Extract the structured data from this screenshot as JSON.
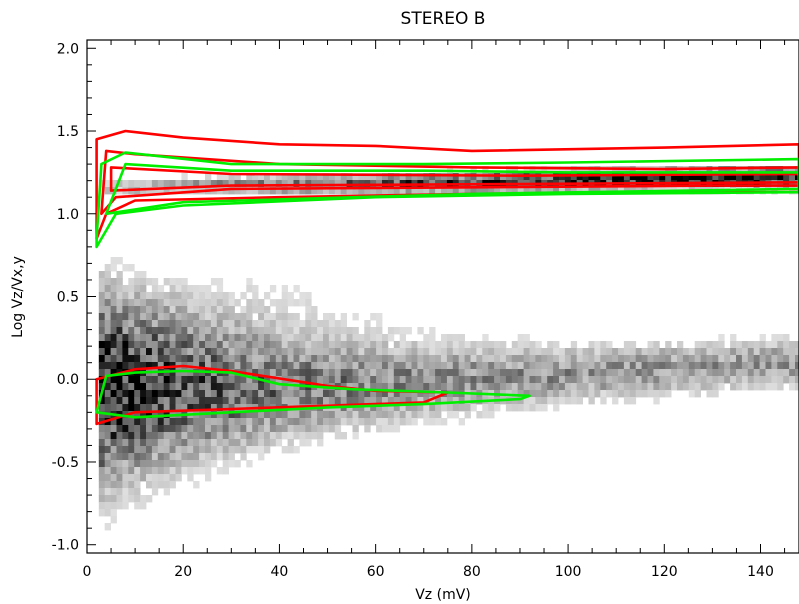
{
  "chart_data": {
    "type": "heatmap",
    "title": "STEREO B",
    "xlabel": "Vz (mV)",
    "ylabel": "Log Vz/Vx,y",
    "xlim": [
      0,
      148
    ],
    "ylim": [
      -1.05,
      2.05
    ],
    "x_ticks": [
      0,
      20,
      40,
      60,
      80,
      100,
      120,
      140
    ],
    "x_tick_labels": [
      "0",
      "20",
      "40",
      "60",
      "80",
      "100",
      "120",
      "140"
    ],
    "y_ticks": [
      -1.0,
      -0.5,
      0.0,
      0.5,
      1.0,
      1.5,
      2.0
    ],
    "y_tick_labels": [
      "-1.0",
      "-0.5",
      "0.0",
      "0.5",
      "1.0",
      "1.5",
      "2.0"
    ],
    "grid": false,
    "legend": "none",
    "colors": {
      "density": "grayscale",
      "contour_red": "#ff0000",
      "contour_green": "#00ee00"
    },
    "density_branches": [
      {
        "name": "upper band",
        "x_range": [
          2,
          148
        ],
        "y_center": [
          1.15,
          1.2
        ],
        "y_spread": 0.05,
        "peak_density": 0.75
      },
      {
        "name": "lower band",
        "x_range": [
          2,
          148
        ],
        "y_center": [
          -0.12,
          0.1
        ],
        "y_spread": 0.25,
        "peak_density": 0.9
      }
    ],
    "contours": [
      {
        "color": "red",
        "level": 1,
        "points": [
          [
            2,
            1.05
          ],
          [
            2,
            0.85
          ],
          [
            4,
            1.0
          ],
          [
            10,
            1.08
          ],
          [
            40,
            1.1
          ],
          [
            80,
            1.12
          ],
          [
            120,
            1.13
          ],
          [
            148,
            1.13
          ],
          [
            148,
            1.42
          ],
          [
            120,
            1.4
          ],
          [
            80,
            1.38
          ],
          [
            60,
            1.41
          ],
          [
            40,
            1.42
          ],
          [
            20,
            1.46
          ],
          [
            8,
            1.5
          ],
          [
            2,
            1.45
          ]
        ]
      },
      {
        "color": "red",
        "level": 2,
        "points": [
          [
            3,
            1.0
          ],
          [
            6,
            1.1
          ],
          [
            30,
            1.15
          ],
          [
            80,
            1.16
          ],
          [
            130,
            1.17
          ],
          [
            148,
            1.17
          ],
          [
            148,
            1.28
          ],
          [
            120,
            1.27
          ],
          [
            80,
            1.28
          ],
          [
            40,
            1.3
          ],
          [
            10,
            1.36
          ],
          [
            4,
            1.38
          ]
        ]
      },
      {
        "color": "red",
        "level": 3,
        "points": [
          [
            5,
            1.14
          ],
          [
            30,
            1.17
          ],
          [
            90,
            1.18
          ],
          [
            148,
            1.19
          ],
          [
            148,
            1.24
          ],
          [
            90,
            1.23
          ],
          [
            30,
            1.24
          ],
          [
            5,
            1.28
          ]
        ]
      },
      {
        "color": "red",
        "level": 1,
        "points": [
          [
            2,
            -0.27
          ],
          [
            10,
            -0.2
          ],
          [
            30,
            -0.18
          ],
          [
            50,
            -0.16
          ],
          [
            70,
            -0.14
          ],
          [
            75,
            -0.08
          ],
          [
            60,
            -0.07
          ],
          [
            50,
            -0.04
          ],
          [
            30,
            0.05
          ],
          [
            20,
            0.08
          ],
          [
            10,
            0.06
          ],
          [
            2,
            0.0
          ]
        ]
      },
      {
        "color": "green",
        "level": 1,
        "points": [
          [
            2,
            0.85
          ],
          [
            2,
            0.8
          ],
          [
            6,
            1.0
          ],
          [
            20,
            1.05
          ],
          [
            60,
            1.1
          ],
          [
            100,
            1.12
          ],
          [
            148,
            1.13
          ],
          [
            148,
            1.33
          ],
          [
            100,
            1.31
          ],
          [
            70,
            1.3
          ],
          [
            30,
            1.3
          ],
          [
            8,
            1.37
          ],
          [
            3,
            1.3
          ]
        ]
      },
      {
        "color": "green",
        "level": 2,
        "points": [
          [
            4,
            1.0
          ],
          [
            20,
            1.07
          ],
          [
            80,
            1.12
          ],
          [
            148,
            1.15
          ],
          [
            148,
            1.25
          ],
          [
            100,
            1.25
          ],
          [
            70,
            1.26
          ],
          [
            30,
            1.26
          ],
          [
            8,
            1.3
          ]
        ]
      },
      {
        "color": "green",
        "level": 1,
        "points": [
          [
            2,
            -0.2
          ],
          [
            10,
            -0.23
          ],
          [
            30,
            -0.2
          ],
          [
            50,
            -0.17
          ],
          [
            70,
            -0.15
          ],
          [
            90,
            -0.12
          ],
          [
            92,
            -0.1
          ],
          [
            75,
            -0.08
          ],
          [
            55,
            -0.06
          ],
          [
            40,
            -0.03
          ],
          [
            30,
            0.04
          ],
          [
            20,
            0.05
          ],
          [
            10,
            0.04
          ],
          [
            4,
            0.02
          ]
        ]
      }
    ]
  }
}
